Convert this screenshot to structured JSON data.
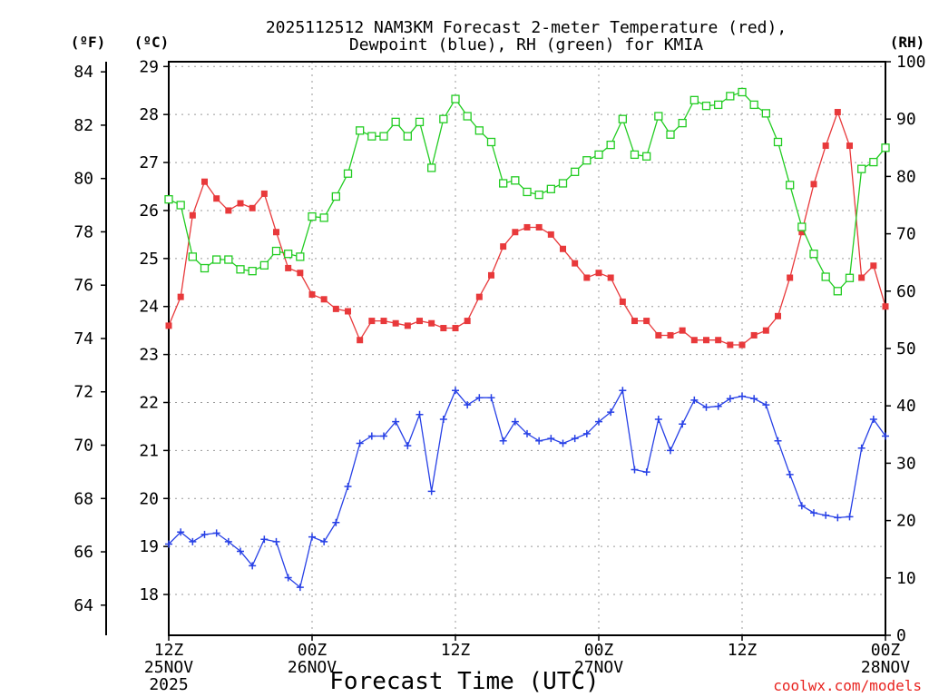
{
  "chart_data": {
    "type": "line",
    "title_line1": "2025112512 NAM3KM Forecast 2-meter Temperature (red),",
    "title_line2": "Dewpoint (blue), RH (green) for KMIA",
    "xlabel": "Forecast Time (UTC)",
    "credit": "coolwx.com/models",
    "units": {
      "fahrenheit": "(ºF)",
      "celsius": "(ºC)",
      "rh": "(RH)"
    },
    "fahrenheit_ticks": [
      "84",
      "82",
      "80",
      "78",
      "76",
      "74",
      "72",
      "70",
      "68",
      "66",
      "64"
    ],
    "fahrenheit_values": [
      84,
      82,
      80,
      78,
      76,
      74,
      72,
      70,
      68,
      66,
      64
    ],
    "celsius_ticks": [
      "29",
      "28",
      "27",
      "26",
      "25",
      "24",
      "23",
      "22",
      "21",
      "20",
      "19",
      "18"
    ],
    "celsius_values": [
      29,
      28,
      27,
      26,
      25,
      24,
      23,
      22,
      21,
      20,
      19,
      18
    ],
    "celsius_range": [
      17.15,
      29.1
    ],
    "rh_ticks": [
      "100",
      "90",
      "80",
      "70",
      "60",
      "50",
      "40",
      "30",
      "20",
      "10",
      "0"
    ],
    "rh_values": [
      100,
      90,
      80,
      70,
      60,
      50,
      40,
      30,
      20,
      10,
      0
    ],
    "rh_range": [
      0,
      100
    ],
    "x_range_hours": [
      0,
      60
    ],
    "x_ticks": [
      {
        "hour": 0,
        "line1": "12Z",
        "line2": "25NOV",
        "line3": "2025"
      },
      {
        "hour": 12,
        "line1": "00Z",
        "line2": "26NOV",
        "line3": ""
      },
      {
        "hour": 24,
        "line1": "12Z",
        "line2": "",
        "line3": ""
      },
      {
        "hour": 36,
        "line1": "00Z",
        "line2": "27NOV",
        "line3": ""
      },
      {
        "hour": 48,
        "line1": "12Z",
        "line2": "",
        "line3": ""
      },
      {
        "hour": 60,
        "line1": "00Z",
        "line2": "28NOV",
        "line3": ""
      }
    ],
    "series": [
      {
        "name": "Temperature",
        "unit": "C",
        "color": "#e8393b",
        "marker": "filled-square",
        "x": [
          0,
          1,
          2,
          3,
          4,
          5,
          6,
          7,
          8,
          9,
          10,
          11,
          12,
          13,
          14,
          15,
          16,
          17,
          18,
          19,
          20,
          21,
          22,
          23,
          24,
          25,
          26,
          27,
          28,
          29,
          30,
          31,
          32,
          33,
          34,
          35,
          36,
          37,
          38,
          39,
          40,
          41,
          42,
          43,
          44,
          45,
          46,
          47,
          48,
          49,
          50,
          51,
          52,
          53,
          54,
          55,
          56,
          57,
          58,
          59,
          60
        ],
        "values": [
          23.6,
          24.2,
          25.9,
          26.6,
          26.25,
          26.0,
          26.15,
          26.05,
          26.35,
          25.55,
          24.8,
          24.7,
          24.25,
          24.15,
          23.95,
          23.9,
          23.3,
          23.7,
          23.7,
          23.65,
          23.6,
          23.7,
          23.65,
          23.55,
          23.55,
          23.7,
          24.2,
          24.65,
          25.25,
          25.55,
          25.65,
          25.65,
          25.5,
          25.2,
          24.9,
          24.6,
          24.7,
          24.6,
          24.1,
          23.7,
          23.7,
          23.4,
          23.4,
          23.5,
          23.3,
          23.3,
          23.3,
          23.2,
          23.2,
          23.4,
          23.5,
          23.8,
          24.6,
          25.55,
          26.55,
          27.35,
          28.05,
          27.35,
          24.6,
          24.85,
          24.0
        ]
      },
      {
        "name": "Dewpoint",
        "unit": "C",
        "color": "#2740e6",
        "marker": "plus",
        "x": [
          0,
          1,
          2,
          3,
          4,
          5,
          6,
          7,
          8,
          9,
          10,
          11,
          12,
          13,
          14,
          15,
          16,
          17,
          18,
          19,
          20,
          21,
          22,
          23,
          24,
          25,
          26,
          27,
          28,
          29,
          30,
          31,
          32,
          33,
          34,
          35,
          36,
          37,
          38,
          39,
          40,
          41,
          42,
          43,
          44,
          45,
          46,
          47,
          48,
          49,
          50,
          51,
          52,
          53,
          54,
          55,
          56,
          57,
          58,
          59,
          60
        ],
        "values": [
          19.05,
          19.3,
          19.1,
          19.25,
          19.28,
          19.1,
          18.9,
          18.6,
          19.15,
          19.1,
          18.35,
          18.15,
          19.2,
          19.1,
          19.5,
          20.25,
          21.15,
          21.3,
          21.3,
          21.6,
          21.1,
          21.75,
          20.15,
          21.65,
          22.25,
          21.95,
          22.1,
          22.1,
          21.2,
          21.6,
          21.35,
          21.2,
          21.25,
          21.15,
          21.25,
          21.35,
          21.6,
          21.8,
          22.25,
          20.6,
          20.55,
          21.65,
          21.0,
          21.55,
          22.05,
          21.9,
          21.92,
          22.08,
          22.13,
          22.08,
          21.95,
          21.2,
          20.5,
          19.85,
          19.7,
          19.65,
          19.6,
          19.62,
          21.05,
          21.65,
          21.3
        ]
      },
      {
        "name": "RH",
        "unit": "%",
        "color": "#22cc22",
        "marker": "open-square",
        "x": [
          0,
          1,
          2,
          3,
          4,
          5,
          6,
          7,
          8,
          9,
          10,
          11,
          12,
          13,
          14,
          15,
          16,
          17,
          18,
          19,
          20,
          21,
          22,
          23,
          24,
          25,
          26,
          27,
          28,
          29,
          30,
          31,
          32,
          33,
          34,
          35,
          36,
          37,
          38,
          39,
          40,
          41,
          42,
          43,
          44,
          45,
          46,
          47,
          48,
          49,
          50,
          51,
          52,
          53,
          54,
          55,
          56,
          57,
          58,
          59,
          60
        ],
        "values": [
          76,
          75,
          66,
          64,
          65.5,
          65.5,
          63.8,
          63.5,
          64.5,
          67,
          66.5,
          66,
          73,
          72.8,
          76.5,
          80.5,
          88,
          87,
          87,
          89.5,
          87,
          89.5,
          81.5,
          90,
          93.5,
          90.5,
          88,
          86,
          78.8,
          79.3,
          77.3,
          76.8,
          77.8,
          78.8,
          80.8,
          82.8,
          83.8,
          85.5,
          90,
          83.8,
          83.5,
          90.5,
          87.3,
          89.3,
          93.3,
          92.3,
          92.5,
          94,
          94.7,
          92.5,
          91,
          86,
          78.5,
          71.2,
          66.5,
          62.5,
          60,
          62.3,
          81.3,
          82.5,
          85
        ]
      }
    ]
  }
}
